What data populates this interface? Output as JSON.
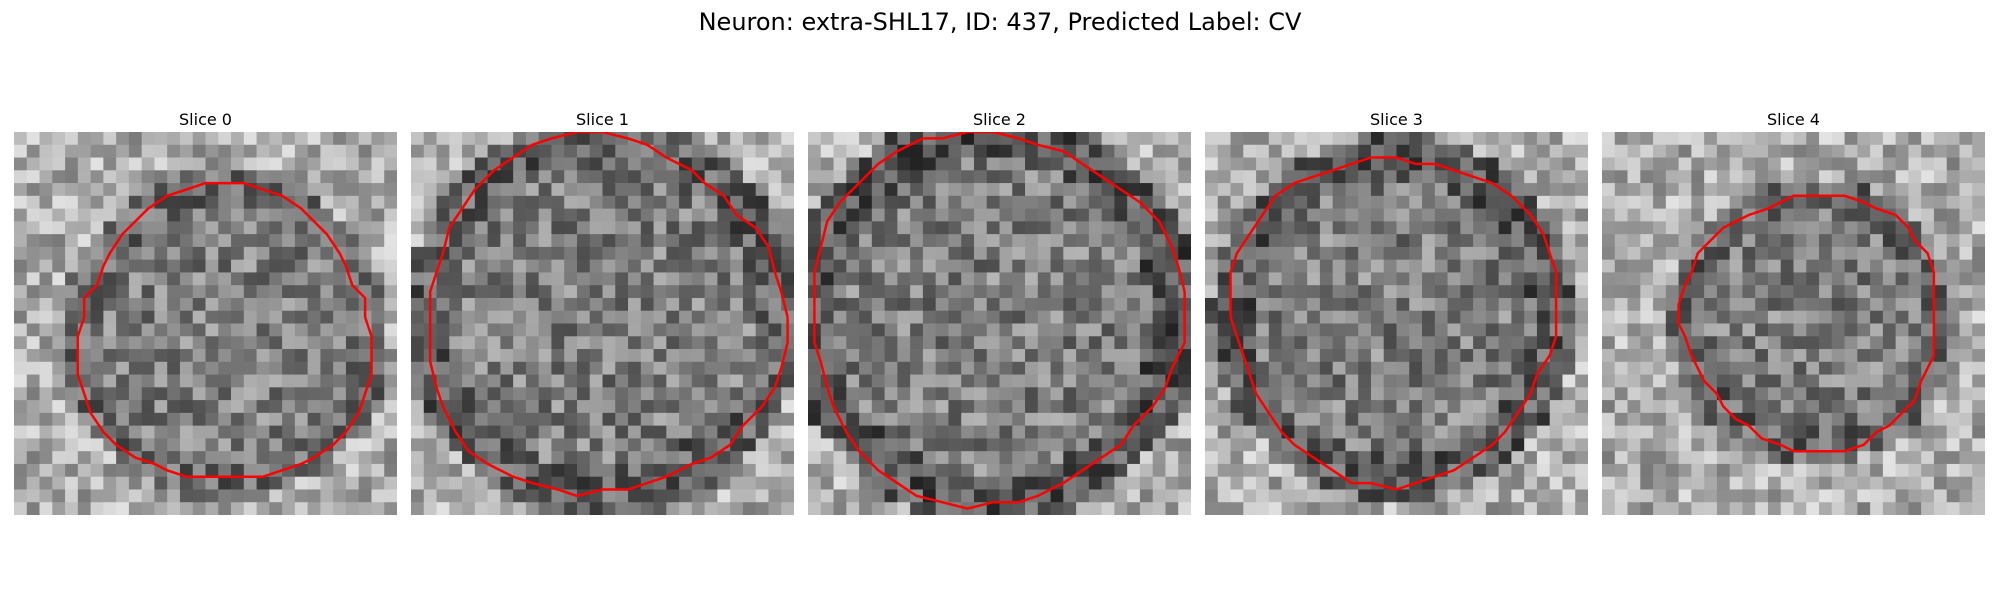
{
  "figure": {
    "title": "Neuron: extra-SHL17, ID: 437, Predicted Label: CV",
    "contour_color": "#ff0000",
    "colormap": "gray",
    "slices": [
      {
        "label": "Slice 0"
      },
      {
        "label": "Slice 1"
      },
      {
        "label": "Slice 2"
      },
      {
        "label": "Slice 3"
      },
      {
        "label": "Slice 4"
      }
    ]
  }
}
